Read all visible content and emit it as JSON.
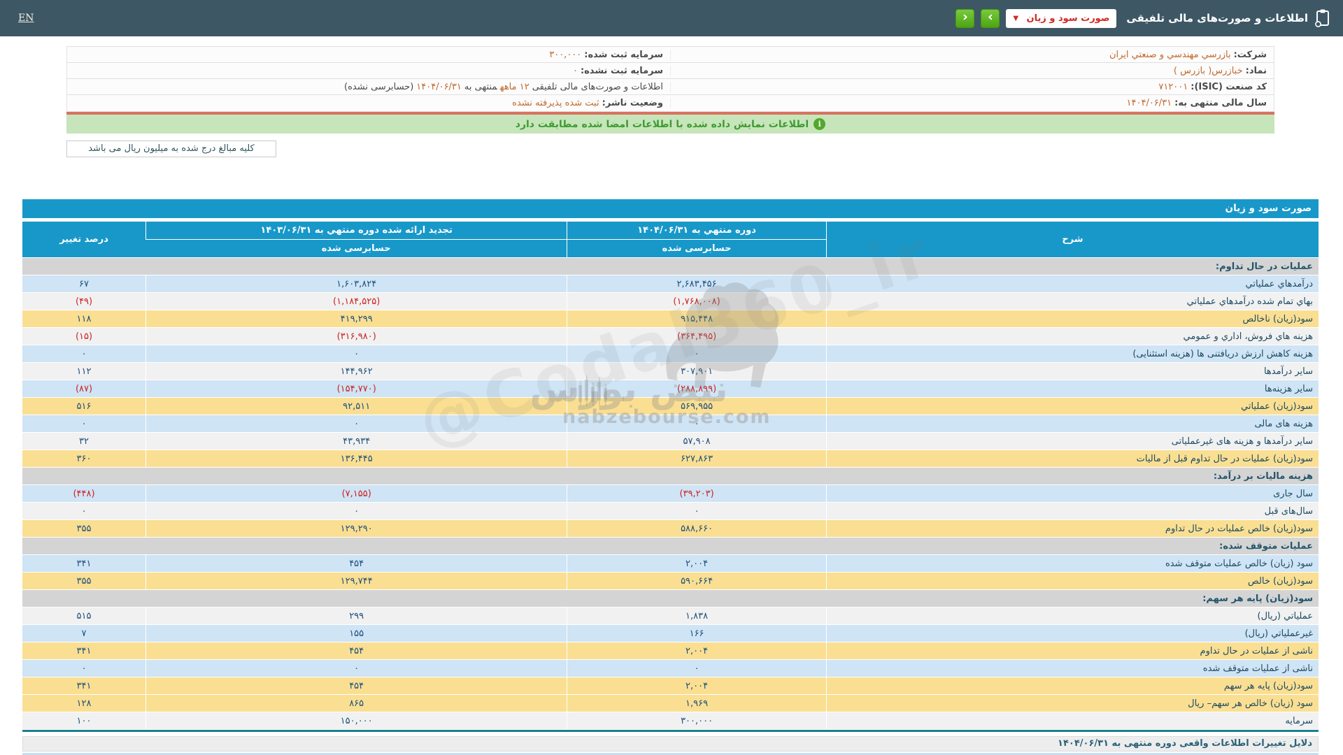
{
  "header": {
    "title": "اطلاعات و صورت‌های مالی تلفیقی",
    "dropdown_value": "صورت سود و زیان",
    "en_label": "EN",
    "icons": {
      "caret": "▼",
      "next": "›",
      "prev": "‹",
      "info": "i"
    }
  },
  "company_info": {
    "right_rows": [
      {
        "parts": [
          {
            "kind": "label",
            "text": "شرکت:"
          },
          {
            "kind": "value",
            "text": "بازرسي مهندسي و صنعتي ايران"
          }
        ]
      },
      {
        "parts": [
          {
            "kind": "label",
            "text": "نماد:"
          },
          {
            "kind": "value",
            "text": "خبازرس( بازرس )"
          }
        ]
      },
      {
        "parts": [
          {
            "kind": "label",
            "text": "کد صنعت (ISIC):"
          },
          {
            "kind": "value",
            "text": "۷۱۲۰۰۱"
          }
        ]
      },
      {
        "parts": [
          {
            "kind": "label",
            "text": "سال مالی منتهی به:"
          },
          {
            "kind": "value",
            "text": "۱۴۰۴/۰۶/۳۱"
          }
        ]
      }
    ],
    "left_rows": [
      {
        "parts": [
          {
            "kind": "label",
            "text": "سرمایه ثبت شده:"
          },
          {
            "kind": "value",
            "text": "۳۰۰,۰۰۰"
          }
        ]
      },
      {
        "parts": [
          {
            "kind": "label",
            "text": "سرمایه ثبت نشده:"
          },
          {
            "kind": "value",
            "text": "۰"
          }
        ]
      },
      {
        "parts": [
          {
            "kind": "text",
            "text": "اطلاعات و صورت‌های مالی تلفیقی"
          },
          {
            "kind": "value",
            "text": "۱۲ ماهه"
          },
          {
            "kind": "text",
            "text": "منتهی به"
          },
          {
            "kind": "value",
            "text": "۱۴۰۴/۰۶/۳۱"
          },
          {
            "kind": "text",
            "text": "(حسابرسی نشده)"
          }
        ]
      },
      {
        "parts": [
          {
            "kind": "label",
            "text": "وضعیت ناشر:"
          },
          {
            "kind": "value",
            "text": "ثبت شده پذیرفته نشده"
          }
        ]
      }
    ]
  },
  "messages": {
    "signature_match": "اطلاعات نمایش داده شده با اطلاعات امضا شده مطابقت دارد",
    "amounts_unit": "کلیه مبالغ درج شده به میلیون ریال می باشد"
  },
  "statement_table": {
    "title": "صورت سود و زیان",
    "columns": {
      "description": "شرح",
      "current_period": "دوره منتهي به ۱۴۰۴/۰۶/۳۱",
      "restated_prior": "تجدید ارائه شده دوره منتهي به ۱۴۰۳/۰۶/۳۱",
      "percent_change": "درصد تغییر",
      "audited": "حسابرسی شده"
    },
    "rows": [
      {
        "type": "section",
        "label": "عملیات در حال تداوم:"
      },
      {
        "type": "data",
        "style": "blue",
        "label": "درآمدهاي عملياتي",
        "current": "۲,۶۸۳,۴۵۶",
        "prior": "۱,۶۰۳,۸۲۴",
        "change": "۶۷"
      },
      {
        "type": "data",
        "style": "plain",
        "label": "بهاي تمام شده درآمدهاي عملياتي",
        "current": "(۱,۷۶۸,۰۰۸)",
        "prior": "(۱,۱۸۴,۵۲۵)",
        "change": "(۴۹)"
      },
      {
        "type": "data",
        "style": "yellow",
        "label": "سود(زيان) ناخالص",
        "current": "۹۱۵,۴۴۸",
        "prior": "۴۱۹,۲۹۹",
        "change": "۱۱۸"
      },
      {
        "type": "data",
        "style": "plain",
        "label": "هزینه هاي فروش، اداري و عمومي",
        "current": "(۳۶۴,۴۹۵)",
        "prior": "(۳۱۶,۹۸۰)",
        "change": "(۱۵)"
      },
      {
        "type": "data",
        "style": "blue",
        "label": "هزینه کاهش ارزش دریافتنی ها (هزینه استثنایی)",
        "current": "۰",
        "prior": "۰",
        "change": "۰"
      },
      {
        "type": "data",
        "style": "plain",
        "label": "سایر درآمدها",
        "current": "۳۰۷,۹۰۱",
        "prior": "۱۴۴,۹۶۲",
        "change": "۱۱۲"
      },
      {
        "type": "data",
        "style": "blue",
        "label": "سایر هزینه‌ها",
        "current": "(۲۸۸,۸۹۹)",
        "prior": "(۱۵۴,۷۷۰)",
        "change": "(۸۷)"
      },
      {
        "type": "data",
        "style": "yellow",
        "label": "سود(زيان) عملياتي",
        "current": "۵۶۹,۹۵۵",
        "prior": "۹۲,۵۱۱",
        "change": "۵۱۶"
      },
      {
        "type": "data",
        "style": "blue",
        "label": "هزینه های مالی",
        "current": "۰",
        "prior": "۰",
        "change": "۰"
      },
      {
        "type": "data",
        "style": "plain",
        "label": "سایر درآمدها و هزینه های غیرعملیاتی",
        "current": "۵۷,۹۰۸",
        "prior": "۴۳,۹۳۴",
        "change": "۳۲"
      },
      {
        "type": "data",
        "style": "yellow",
        "label": "سود(زيان) عملیات در حال تداوم قبل از مالیات",
        "current": "۶۲۷,۸۶۳",
        "prior": "۱۳۶,۴۴۵",
        "change": "۳۶۰"
      },
      {
        "type": "section",
        "label": "هزینه مالیات بر درآمد:"
      },
      {
        "type": "data",
        "style": "blue",
        "label": "سال جاری",
        "current": "(۳۹,۲۰۳)",
        "prior": "(۷,۱۵۵)",
        "change": "(۴۴۸)"
      },
      {
        "type": "data",
        "style": "plain",
        "label": "سال‌های قبل",
        "current": "۰",
        "prior": "۰",
        "change": "۰"
      },
      {
        "type": "data",
        "style": "yellow",
        "label": "سود(زيان) خالص عملیات در حال تداوم",
        "current": "۵۸۸,۶۶۰",
        "prior": "۱۲۹,۲۹۰",
        "change": "۳۵۵"
      },
      {
        "type": "section",
        "label": "عملیات متوقف شده:"
      },
      {
        "type": "data",
        "style": "blue",
        "label": "سود (زیان) خالص عملیات متوقف شده",
        "current": "۲,۰۰۴",
        "prior": "۴۵۴",
        "change": "۳۴۱"
      },
      {
        "type": "data",
        "style": "yellow",
        "label": "سود(زيان) خالص",
        "current": "۵۹۰,۶۶۴",
        "prior": "۱۲۹,۷۴۴",
        "change": "۳۵۵"
      },
      {
        "type": "section",
        "label": "سود(زیان) پایه هر سهم:"
      },
      {
        "type": "data",
        "style": "plain",
        "label": "عملیاتي (ریال)",
        "current": "۱,۸۳۸",
        "prior": "۲۹۹",
        "change": "۵۱۵"
      },
      {
        "type": "data",
        "style": "blue",
        "label": "غیرعملیاتي (ریال)",
        "current": "۱۶۶",
        "prior": "۱۵۵",
        "change": "۷"
      },
      {
        "type": "data",
        "style": "yellow",
        "label": "ناشی از عملیات در حال تداوم",
        "current": "۲,۰۰۴",
        "prior": "۴۵۴",
        "change": "۳۴۱"
      },
      {
        "type": "data",
        "style": "blue",
        "label": "ناشی از عملیات متوقف شده",
        "current": "۰",
        "prior": "۰",
        "change": "۰"
      },
      {
        "type": "data",
        "style": "yellow",
        "label": "سود(زیان) پایه هر سهم",
        "current": "۲,۰۰۴",
        "prior": "۴۵۴",
        "change": "۳۴۱"
      },
      {
        "type": "data",
        "style": "yellow",
        "label": "سود (زیان) خالص هر سهم– ریال",
        "current": "۱,۹۶۹",
        "prior": "۸۶۵",
        "change": "۱۲۸"
      },
      {
        "type": "data",
        "style": "plain",
        "label": "سرمایه",
        "current": "۳۰۰,۰۰۰",
        "prior": "۱۵۰,۰۰۰",
        "change": "۱۰۰"
      }
    ]
  },
  "footer": {
    "reasons_title": "دلایل تغییرات اطلاعات واقعی دوره منتهی به ۱۴۰۴/۰۶/۳۱"
  },
  "watermark": {
    "brand": "نبض بورس",
    "site": "nabzebourse.com",
    "handle": "@Codal360_ir"
  },
  "colors": {
    "topbar": "#3d5765",
    "accent_blue": "#1898c9",
    "yellow_row": "#fadf92",
    "blue_row": "#cfe4f5",
    "section_row": "#d4d4d4",
    "plain_row": "#f1f1f1",
    "negative_red": "#cc2222",
    "value_navy": "#1d4f7c",
    "orange_value": "#c2692f",
    "green_bar": "#c7e5ba",
    "green_text": "#3e9b33",
    "button_green": "#4da411",
    "red_line": "#d9725f",
    "teal_border": "#1a7f8f"
  }
}
